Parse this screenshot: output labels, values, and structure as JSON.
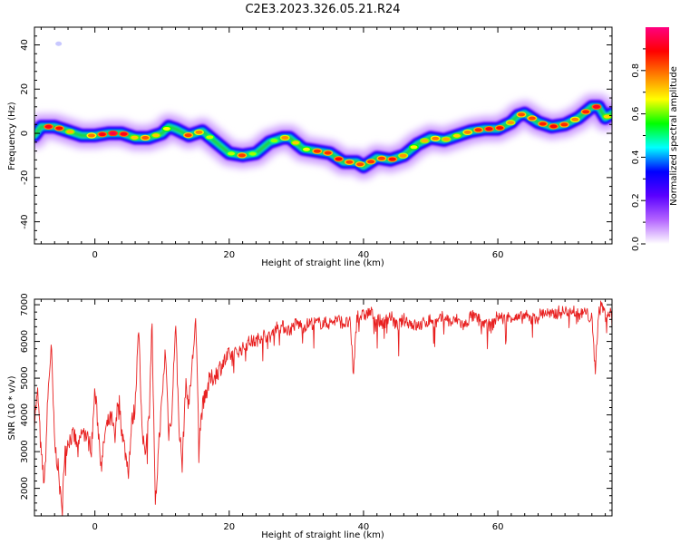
{
  "figure_title": "C2E3.2023.326.05.21.R24",
  "chart_data": [
    {
      "type": "heatmap",
      "title": "",
      "xlabel": "Height of straight line (km)",
      "ylabel": "Frequency (Hz)",
      "xlim": [
        -9,
        77
      ],
      "ylim": [
        -50,
        48
      ],
      "xticks": [
        0,
        20,
        40,
        60
      ],
      "yticks": [
        -40,
        -20,
        0,
        20,
        40
      ],
      "colorbar": {
        "label": "Normalized spectral amplitude",
        "range": [
          0,
          1
        ],
        "ticks": [
          0.0,
          0.2,
          0.4,
          0.6,
          0.8
        ],
        "colormap": [
          "#ffffff",
          "#b464ff",
          "#5a00ff",
          "#0000ff",
          "#00ffff",
          "#00ff00",
          "#ffff00",
          "#ff8000",
          "#ff0000",
          "#ff0080"
        ]
      },
      "ridge": {
        "x": [
          -9,
          -8,
          -6,
          -4,
          -2,
          0,
          2,
          4,
          6,
          8,
          10,
          11,
          12,
          14,
          16,
          18,
          20,
          22,
          24,
          26,
          28,
          29,
          31,
          33,
          35,
          37,
          39,
          40,
          42,
          44,
          46,
          48,
          50,
          52,
          54,
          56,
          58,
          60,
          62,
          63,
          64,
          66,
          68,
          70,
          72,
          74,
          75,
          76,
          77
        ],
        "freq": [
          -1,
          3,
          3,
          1,
          -1,
          -1,
          0,
          0,
          -2,
          -2,
          0,
          3,
          2,
          -1,
          1,
          -4,
          -9,
          -10,
          -9,
          -4,
          -2,
          -2,
          -7,
          -8,
          -9,
          -13,
          -13,
          -15,
          -11,
          -12,
          -10,
          -5,
          -2,
          -3,
          -1,
          1,
          2,
          2,
          5,
          8,
          9,
          5,
          3,
          4,
          7,
          12,
          12,
          7,
          9
        ],
        "amplitude": [
          0.3,
          0.85,
          0.95,
          0.75,
          0.6,
          0.85,
          0.95,
          0.95,
          0.7,
          0.85,
          0.6,
          0.7,
          0.55,
          0.85,
          0.75,
          0.55,
          0.6,
          0.85,
          0.55,
          0.55,
          0.75,
          0.8,
          0.6,
          0.85,
          0.85,
          0.9,
          0.75,
          0.9,
          0.8,
          0.9,
          0.75,
          0.65,
          0.8,
          0.75,
          0.7,
          0.8,
          0.9,
          0.9,
          0.75,
          0.85,
          0.8,
          0.85,
          0.9,
          0.85,
          0.75,
          0.95,
          0.9,
          0.75,
          0.6
        ]
      },
      "blips": [
        {
          "x": -5.4,
          "freq": 40.5,
          "amplitude": 0.1
        }
      ]
    },
    {
      "type": "line",
      "title": "",
      "xlabel": "Height of straight line (km)",
      "ylabel": "SNR (10 * v/v)",
      "xlim": [
        -9,
        77
      ],
      "ylim": [
        1250,
        7150
      ],
      "xticks": [
        0,
        20,
        40,
        60
      ],
      "yticks": [
        2000,
        3000,
        4000,
        5000,
        6000,
        7000
      ],
      "series": [
        {
          "color": "#e82020",
          "x": [
            -9,
            -8.5,
            -8,
            -7.5,
            -7,
            -6.5,
            -6,
            -5.5,
            -5,
            -4.5,
            -4,
            -3.5,
            -3,
            -2.5,
            -2,
            -1.5,
            -1,
            -0.5,
            0,
            0.5,
            1,
            1.5,
            2,
            2.5,
            3,
            3.5,
            4,
            4.5,
            5,
            5.5,
            6,
            6.5,
            7,
            7.5,
            8,
            8.5,
            9,
            9.5,
            10,
            10.5,
            11,
            11.5,
            12,
            12.5,
            13,
            13.5,
            14,
            14.5,
            15,
            15.5,
            16,
            17,
            18,
            19,
            20,
            21,
            22,
            23,
            24,
            25,
            26,
            27,
            28,
            29,
            30,
            31,
            32,
            33,
            34,
            35,
            36,
            37,
            38,
            38.5,
            39,
            40,
            41,
            42,
            43,
            44,
            45,
            46,
            47,
            48,
            49,
            50,
            51,
            52,
            53,
            54,
            55,
            56,
            57,
            58,
            59,
            60,
            61,
            62,
            63,
            64,
            65,
            66,
            67,
            68,
            69,
            70,
            71,
            72,
            73,
            74,
            74.5,
            75,
            75.5,
            76,
            77
          ],
          "values": [
            3900,
            4600,
            2900,
            2100,
            4500,
            5900,
            3200,
            2600,
            1500,
            2900,
            3300,
            3400,
            3400,
            3000,
            3500,
            3500,
            3300,
            3100,
            4700,
            3600,
            2600,
            3500,
            3800,
            3900,
            3300,
            4600,
            3600,
            3000,
            2500,
            3800,
            4200,
            6600,
            3500,
            3100,
            3800,
            6500,
            1400,
            3200,
            4400,
            5800,
            3500,
            4100,
            6600,
            3800,
            2600,
            4800,
            4300,
            5400,
            6600,
            3300,
            4200,
            4900,
            5100,
            5400,
            5600,
            5700,
            5800,
            6000,
            6000,
            6200,
            6100,
            6400,
            6400,
            6300,
            6500,
            6400,
            6500,
            6500,
            6500,
            6500,
            6600,
            6500,
            6500,
            5100,
            6700,
            6700,
            6800,
            6600,
            6500,
            6700,
            6400,
            6600,
            6500,
            6400,
            6500,
            6600,
            6500,
            6700,
            6500,
            6600,
            6400,
            6700,
            6600,
            6500,
            6400,
            6700,
            6600,
            6700,
            6600,
            6700,
            6600,
            6700,
            6800,
            6700,
            6800,
            6800,
            6900,
            6700,
            6800,
            6600,
            5200,
            6800,
            7000,
            6700,
            6800
          ]
        }
      ]
    }
  ]
}
